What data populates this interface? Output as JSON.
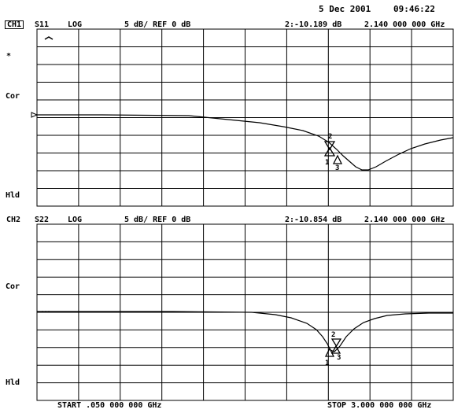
{
  "header": {
    "date": "5 Dec 2001",
    "time": "09:46:22"
  },
  "channel1": {
    "channel_label": "CH1",
    "measurement": "S11",
    "format": "LOG",
    "scale": "5 dB/ REF 0 dB",
    "marker_readout": "2:-10.189 dB",
    "marker_freq": "2.140 000 000 GHz",
    "side_labels": {
      "top_star": "*",
      "cor": "Cor",
      "hld": "Hld"
    }
  },
  "channel2": {
    "channel_label": "CH2",
    "measurement": "S22",
    "format": "LOG",
    "scale": "5 dB/ REF 0 dB",
    "marker_readout": "2:-10.854 dB",
    "marker_freq": "2.140 000 000 GHz",
    "side_labels": {
      "cor": "Cor",
      "hld": "Hld"
    }
  },
  "footer": {
    "start": "START .050 000 000 GHz",
    "stop": "STOP 3.000 000 000 GHz"
  },
  "grid": {
    "divisions_x": 10,
    "divisions_y": 10
  },
  "colors": {
    "trace": "#000000",
    "grid": "#000000",
    "background": "#ffffff"
  }
}
